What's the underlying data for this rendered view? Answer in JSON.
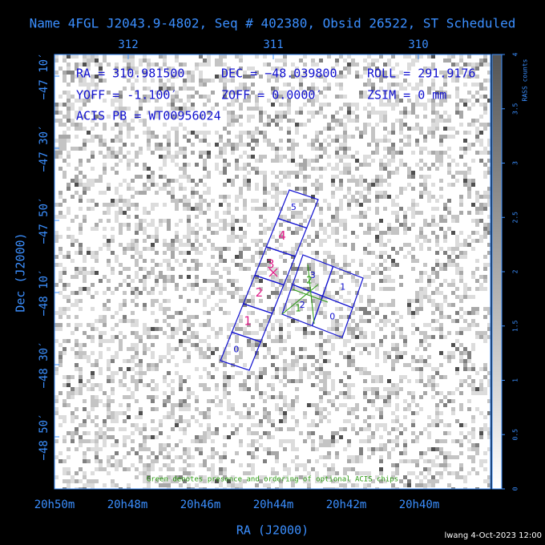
{
  "title": "Name 4FGL J2043.9-4802, Seq # 402380, Obsid 26522, ST Scheduled",
  "ra_ticks_top": [
    "312",
    "311",
    "310"
  ],
  "dec_ticks": [
    "−47 10′",
    "−47 30′",
    "−47 50′",
    "−48 10′",
    "−48 30′",
    "−48 50′"
  ],
  "ra_ticks_bottom": [
    "20h50m",
    "20h48m",
    "20h46m",
    "20h44m",
    "20h42m",
    "20h40m"
  ],
  "x_label": "RA (J2000)",
  "y_label": "Dec (J2000)",
  "colorbar": {
    "label": "RASS counts",
    "ticks": [
      "0",
      "0.5",
      "1",
      "1.5",
      "2",
      "2.5",
      "3",
      "3.5",
      "4"
    ]
  },
  "info": {
    "ra": "RA = 310.981500",
    "dec": "DEC = −48.039800",
    "roll": "ROLL = 291.9176",
    "yoff": "YOFF =  -1.100′",
    "zoff": "ZOFF =  0.0000′",
    "zsim": "ZSIM = 0 mm",
    "acis_pb": "ACIS PB = WT00956024"
  },
  "chips": {
    "acis_s": [
      "5",
      "4",
      "3",
      "2",
      "1",
      "0"
    ],
    "acis_i": [
      "3",
      "1",
      "2",
      "0"
    ],
    "optional": [
      "2",
      "1"
    ]
  },
  "footnote": "Green denotes presence and ordering of optional ACIS chips",
  "credit": "lwang  4-Oct-2023 12:00"
}
